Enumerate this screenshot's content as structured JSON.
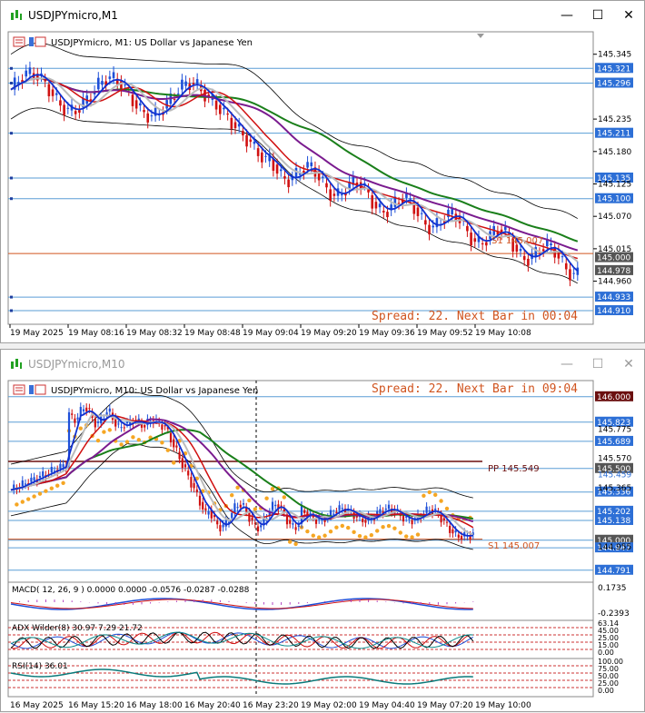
{
  "colors": {
    "up": "#1e4fd8",
    "down": "#d01010",
    "grid": "#5a9ed6",
    "orange": "#f5a623",
    "green": "#1a7f1a",
    "purple": "#7a1b8f",
    "spread": "#d0541f"
  },
  "window1": {
    "title": "USDJPYmicro,M1",
    "chart_label": "USDJPYmicro, M1:  US Dollar vs Japanese Yen",
    "spread_text": "Spread: 22. Next Bar in 00:04",
    "s1_label": "S1 145.007",
    "minimize": "—",
    "maximize": "☐",
    "close": "✕",
    "price_ticks": [
      "145.345",
      "145.235",
      "145.180",
      "145.125",
      "145.070",
      "145.015",
      "144.960"
    ],
    "price_lines": [
      "145.321",
      "145.296",
      "145.211",
      "145.135",
      "145.100",
      "144.933",
      "144.910"
    ],
    "price_boxes": [
      "145.000",
      "144.978"
    ],
    "time_labels": [
      "19 May 2025",
      "19 May 08:16",
      "19 May 08:32",
      "19 May 08:48",
      "19 May 09:04",
      "19 May 09:20",
      "19 May 09:36",
      "19 May 09:52",
      "19 May 10:08"
    ]
  },
  "window2": {
    "title": "USDJPYmicro,M10",
    "chart_label": "USDJPYmicro, M10:  US Dollar vs Japanese Yen",
    "spread_text": "Spread: 22. Next Bar in 09:04",
    "pp_label": "PP 145.549",
    "s1_label": "S1 145.007",
    "minimize": "—",
    "maximize": "☐",
    "close": "✕",
    "price_ticks": [
      "145.775",
      "145.570",
      "145.365",
      "144.955"
    ],
    "price_lines": [
      "146.000",
      "145.823",
      "145.689",
      "145.500",
      "145.336",
      "145.202",
      "145.138",
      "145.000",
      "144.947",
      "144.791"
    ],
    "price_extra": [
      "145.459"
    ],
    "macd_label": "MACD( 12, 26, 9 ) 0.0000  0.0000 -0.0576 -0.0287 -0.0288",
    "macd_ticks": [
      "0.1735",
      "-0.2393"
    ],
    "adx_label": "ADX Wilder(8) 30.97  7.29  21.72",
    "adx_ticks": [
      "63.14",
      "45.00",
      "25.00",
      "15.00",
      "0.00"
    ],
    "rsi_label": "RSI(14) 36.01",
    "rsi_ticks": [
      "100.00",
      "75.00",
      "50.00",
      "25.00",
      "0.00"
    ],
    "time_labels": [
      "16 May 2025",
      "16 May 15:20",
      "16 May 18:00",
      "16 May 20:40",
      "16 May 23:20",
      "19 May 02:00",
      "19 May 04:40",
      "19 May 07:20",
      "19 May 10:00"
    ]
  }
}
